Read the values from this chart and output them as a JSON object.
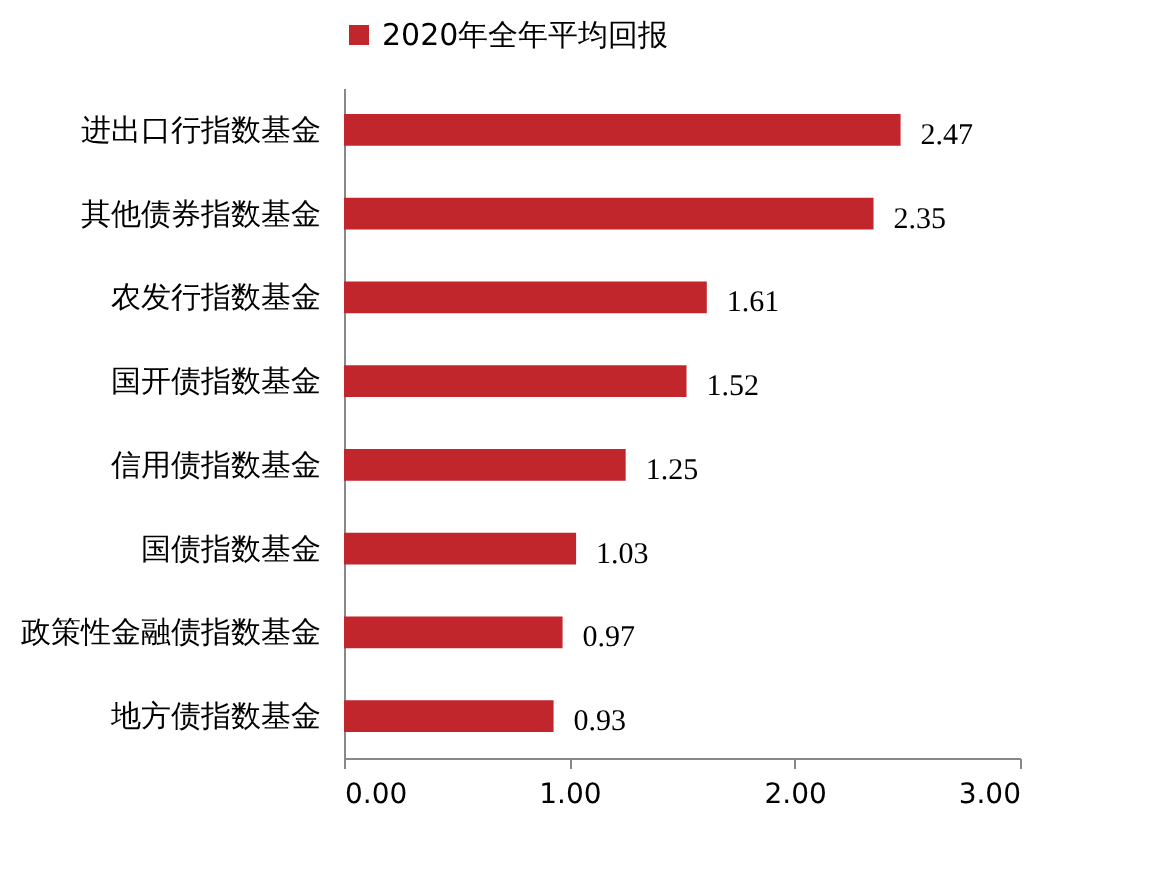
{
  "chart_data": {
    "type": "bar",
    "orientation": "horizontal",
    "categories": [
      "进出口行指数基金",
      "其他债券指数基金",
      "农发行指数基金",
      "国开债指数基金",
      "信用债指数基金",
      "国债指数基金",
      "政策性金融债指数基金",
      "地方债指数基金"
    ],
    "series": [
      {
        "name": "2020年全年平均回报",
        "color": "#c0262c",
        "values": [
          2.47,
          2.35,
          1.61,
          1.52,
          1.25,
          1.03,
          0.97,
          0.93
        ]
      }
    ],
    "xlim": [
      0,
      3
    ],
    "xticks": [
      {
        "value": 0,
        "label": "0.00"
      },
      {
        "value": 1,
        "label": "1.00"
      },
      {
        "value": 2,
        "label": "2.00"
      },
      {
        "value": 3,
        "label": "3.00"
      }
    ],
    "data_labels": true,
    "legend": "top",
    "grid": false
  }
}
